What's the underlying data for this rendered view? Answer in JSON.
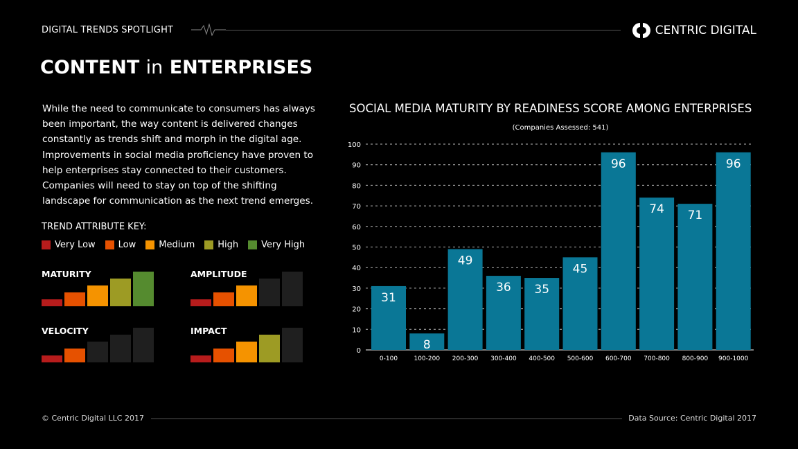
{
  "header": {
    "spotlight": "DIGITAL TRENDS SPOTLIGHT",
    "brand": "CENTRIC DIGITAL"
  },
  "title": {
    "part1": "CONTENT",
    "part2": "in",
    "part3": "ENTERPRISES"
  },
  "body_text": "While the need to communicate to consumers has always been important, the way content is delivered changes constantly as trends shift and morph in the digital age. Improvements in social media proficiency have proven to help enterprises stay connected to their customers. Companies will need to stay on top of the shifting landscape for communication as the next trend emerges.",
  "key": {
    "title": "TREND ATTRIBUTE KEY:",
    "levels": [
      {
        "label": "Very Low",
        "color": "#b71c1c"
      },
      {
        "label": "Low",
        "color": "#e65100"
      },
      {
        "label": "Medium",
        "color": "#f59300"
      },
      {
        "label": "High",
        "color": "#9d9b24"
      },
      {
        "label": "Very High",
        "color": "#558b2f"
      }
    ],
    "inactive_color": "#1f1f1f"
  },
  "attributes": [
    {
      "name": "MATURITY",
      "level": 5
    },
    {
      "name": "AMPLITUDE",
      "level": 3
    },
    {
      "name": "VELOCITY",
      "level": 2
    },
    {
      "name": "IMPACT",
      "level": 4
    }
  ],
  "chart_data": {
    "type": "bar",
    "title": "SOCIAL MEDIA MATURITY BY READINESS SCORE AMONG ENTERPRISES",
    "subtitle": "(Companies Assessed: 541)",
    "categories": [
      "0-100",
      "100-200",
      "200-300",
      "300-400",
      "400-500",
      "500-600",
      "600-700",
      "700-800",
      "800-900",
      "900-1000"
    ],
    "values": [
      31,
      8,
      49,
      36,
      35,
      45,
      96,
      74,
      71,
      96
    ],
    "ylim": [
      0,
      100
    ],
    "yticks": [
      0,
      10,
      20,
      30,
      40,
      50,
      60,
      70,
      80,
      90,
      100
    ],
    "grid": true,
    "bar_color": "#0a7796"
  },
  "footer": {
    "copyright": "© Centric Digital LLC 2017",
    "source": "Data Source: Centric Digital  2017"
  }
}
